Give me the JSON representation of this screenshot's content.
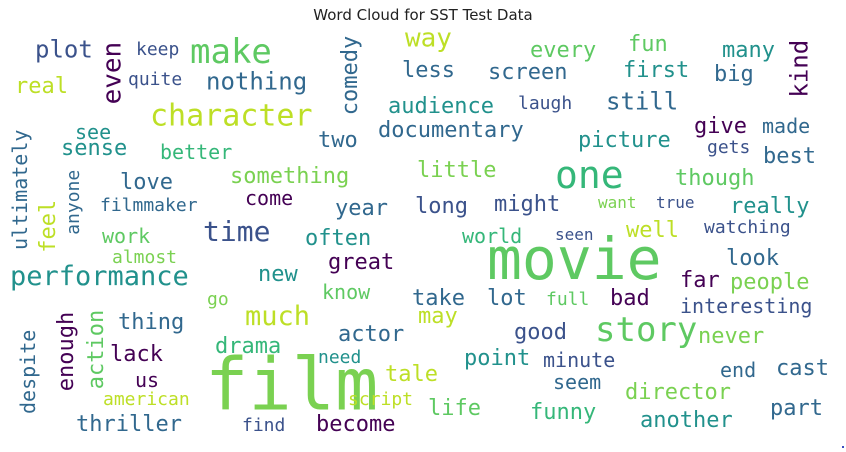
{
  "title": "Word Cloud for SST Test Data",
  "chart_data": {
    "type": "wordcloud",
    "title": "Word Cloud for SST Test Data",
    "words": [
      {
        "text": "film",
        "color": "#7ad151"
      },
      {
        "text": "movie",
        "color": "#5ec962"
      },
      {
        "text": "one",
        "color": "#35b779"
      },
      {
        "text": "story",
        "color": "#5ec962"
      },
      {
        "text": "make",
        "color": "#5ec962"
      },
      {
        "text": "character",
        "color": "#bddf26"
      },
      {
        "text": "time",
        "color": "#3b528b"
      },
      {
        "text": "performance",
        "color": "#21918c"
      },
      {
        "text": "much",
        "color": "#bddf26"
      },
      {
        "text": "way",
        "color": "#bddf26"
      },
      {
        "text": "plot",
        "color": "#3b528b"
      },
      {
        "text": "nothing",
        "color": "#31688e"
      },
      {
        "text": "even",
        "color": "#440154"
      },
      {
        "text": "comedy",
        "color": "#31688e"
      },
      {
        "text": "real",
        "color": "#bddf26"
      },
      {
        "text": "keep",
        "color": "#3b528b"
      },
      {
        "text": "quite",
        "color": "#3b528b"
      },
      {
        "text": "less",
        "color": "#31688e"
      },
      {
        "text": "every",
        "color": "#5ec962"
      },
      {
        "text": "fun",
        "color": "#5ec962"
      },
      {
        "text": "many",
        "color": "#21918c"
      },
      {
        "text": "kind",
        "color": "#440154"
      },
      {
        "text": "screen",
        "color": "#31688e"
      },
      {
        "text": "first",
        "color": "#21918c"
      },
      {
        "text": "big",
        "color": "#31688e"
      },
      {
        "text": "audience",
        "color": "#21918c"
      },
      {
        "text": "laugh",
        "color": "#3b528b"
      },
      {
        "text": "still",
        "color": "#31688e"
      },
      {
        "text": "see",
        "color": "#21918c"
      },
      {
        "text": "sense",
        "color": "#21918c"
      },
      {
        "text": "better",
        "color": "#35b779"
      },
      {
        "text": "two",
        "color": "#31688e"
      },
      {
        "text": "documentary",
        "color": "#31688e"
      },
      {
        "text": "picture",
        "color": "#21918c"
      },
      {
        "text": "give",
        "color": "#440154"
      },
      {
        "text": "made",
        "color": "#31688e"
      },
      {
        "text": "gets",
        "color": "#3b528b"
      },
      {
        "text": "best",
        "color": "#31688e"
      },
      {
        "text": "ultimately",
        "color": "#31688e"
      },
      {
        "text": "anyone",
        "color": "#31688e"
      },
      {
        "text": "feel",
        "color": "#bddf26"
      },
      {
        "text": "love",
        "color": "#31688e"
      },
      {
        "text": "filmmaker",
        "color": "#31688e"
      },
      {
        "text": "something",
        "color": "#7ad151"
      },
      {
        "text": "come",
        "color": "#440154"
      },
      {
        "text": "little",
        "color": "#7ad151"
      },
      {
        "text": "though",
        "color": "#5ec962"
      },
      {
        "text": "year",
        "color": "#31688e"
      },
      {
        "text": "long",
        "color": "#3b528b"
      },
      {
        "text": "might",
        "color": "#3b528b"
      },
      {
        "text": "want",
        "color": "#7ad151"
      },
      {
        "text": "true",
        "color": "#3b528b"
      },
      {
        "text": "really",
        "color": "#21918c"
      },
      {
        "text": "work",
        "color": "#5ec962"
      },
      {
        "text": "often",
        "color": "#21918c"
      },
      {
        "text": "world",
        "color": "#35b779"
      },
      {
        "text": "seen",
        "color": "#3b528b"
      },
      {
        "text": "well",
        "color": "#bddf26"
      },
      {
        "text": "watching",
        "color": "#3b528b"
      },
      {
        "text": "almost",
        "color": "#7ad151"
      },
      {
        "text": "great",
        "color": "#440154"
      },
      {
        "text": "look",
        "color": "#31688e"
      },
      {
        "text": "new",
        "color": "#21918c"
      },
      {
        "text": "know",
        "color": "#5ec962"
      },
      {
        "text": "far",
        "color": "#440154"
      },
      {
        "text": "people",
        "color": "#7ad151"
      },
      {
        "text": "take",
        "color": "#31688e"
      },
      {
        "text": "lot",
        "color": "#31688e"
      },
      {
        "text": "full",
        "color": "#5ec962"
      },
      {
        "text": "bad",
        "color": "#440154"
      },
      {
        "text": "interesting",
        "color": "#3b528b"
      },
      {
        "text": "go",
        "color": "#7ad151"
      },
      {
        "text": "thing",
        "color": "#31688e"
      },
      {
        "text": "may",
        "color": "#bddf26"
      },
      {
        "text": "actor",
        "color": "#31688e"
      },
      {
        "text": "good",
        "color": "#3b528b"
      },
      {
        "text": "never",
        "color": "#7ad151"
      },
      {
        "text": "enough",
        "color": "#440154"
      },
      {
        "text": "action",
        "color": "#5ec962"
      },
      {
        "text": "lack",
        "color": "#440154"
      },
      {
        "text": "drama",
        "color": "#35b779"
      },
      {
        "text": "need",
        "color": "#21918c"
      },
      {
        "text": "point",
        "color": "#21918c"
      },
      {
        "text": "minute",
        "color": "#3b528b"
      },
      {
        "text": "end",
        "color": "#31688e"
      },
      {
        "text": "cast",
        "color": "#31688e"
      },
      {
        "text": "despite",
        "color": "#31688e"
      },
      {
        "text": "us",
        "color": "#440154"
      },
      {
        "text": "tale",
        "color": "#bddf26"
      },
      {
        "text": "seem",
        "color": "#31688e"
      },
      {
        "text": "director",
        "color": "#7ad151"
      },
      {
        "text": "american",
        "color": "#bddf26"
      },
      {
        "text": "script",
        "color": "#bddf26"
      },
      {
        "text": "life",
        "color": "#5ec962"
      },
      {
        "text": "part",
        "color": "#31688e"
      },
      {
        "text": "thriller",
        "color": "#31688e"
      },
      {
        "text": "find",
        "color": "#3b528b"
      },
      {
        "text": "become",
        "color": "#440154"
      },
      {
        "text": "funny",
        "color": "#35b779"
      },
      {
        "text": "another",
        "color": "#21918c"
      }
    ]
  }
}
